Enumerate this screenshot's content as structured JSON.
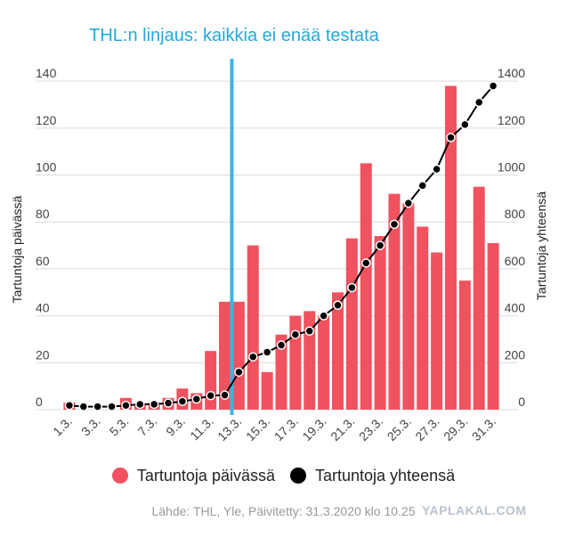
{
  "chart_data": {
    "type": "bar+line",
    "title": "THL:n linjaus: kaikkia ei enää testata",
    "categories": [
      "1.3.",
      "2.3.",
      "3.3.",
      "4.3.",
      "5.3.",
      "6.3.",
      "7.3.",
      "8.3.",
      "9.3.",
      "10.3.",
      "11.3.",
      "12.3.",
      "13.3.",
      "14.3.",
      "15.3.",
      "16.3.",
      "17.3.",
      "18.3.",
      "19.3.",
      "20.3.",
      "21.3.",
      "22.3.",
      "23.3.",
      "24.3.",
      "25.3.",
      "26.3.",
      "27.3.",
      "28.3.",
      "29.3.",
      "30.3.",
      "31.3."
    ],
    "x_tick_labels": [
      "1.3.",
      "3.3.",
      "5.3.",
      "7.3.",
      "9.3.",
      "11.3.",
      "13.3.",
      "15.3.",
      "17.3.",
      "19.3.",
      "21.3.",
      "23.3.",
      "25.3.",
      "27.3.",
      "29.3.",
      "31.3."
    ],
    "series": [
      {
        "name": "Tartuntoja päivässä",
        "type": "bar",
        "axis": "left",
        "color": "#f0525f",
        "values": [
          3,
          0,
          0,
          0,
          5,
          2,
          3,
          5,
          9,
          7,
          25,
          46,
          46,
          70,
          16,
          32,
          40,
          42,
          40,
          50,
          73,
          105,
          74,
          92,
          88,
          78,
          67,
          138,
          55,
          95,
          71
        ]
      },
      {
        "name": "Tartuntoja yhteensä",
        "type": "line",
        "axis": "right",
        "color": "#000000",
        "values": [
          18,
          13,
          13,
          13,
          18,
          23,
          23,
          28,
          35,
          45,
          60,
          62,
          160,
          225,
          245,
          275,
          320,
          335,
          400,
          445,
          520,
          625,
          700,
          790,
          880,
          955,
          1025,
          1160,
          1215,
          1310,
          1380
        ]
      }
    ],
    "y_left": {
      "label": "Tartuntoja päivässä",
      "ticks": [
        0,
        20,
        40,
        60,
        80,
        100,
        120,
        140
      ],
      "lim": [
        0,
        145
      ]
    },
    "y_right": {
      "label": "Tartuntoja yhteensä",
      "ticks": [
        0,
        200,
        400,
        600,
        800,
        1000,
        1200,
        1400
      ],
      "lim": [
        0,
        1450
      ]
    },
    "marker": {
      "category": "12.3.",
      "color": "#3bb4e5"
    },
    "grid": true,
    "legend_position": "bottom"
  },
  "source": "Lähde: THL, Yle, Päivitetty: 31.3.2020 klo 10.25",
  "watermark": "YAPLAKAL.COM",
  "colors": {
    "title": "#24a8d8",
    "bar": "#f0525f",
    "line": "#000000",
    "marker": "#3bb4e5"
  }
}
